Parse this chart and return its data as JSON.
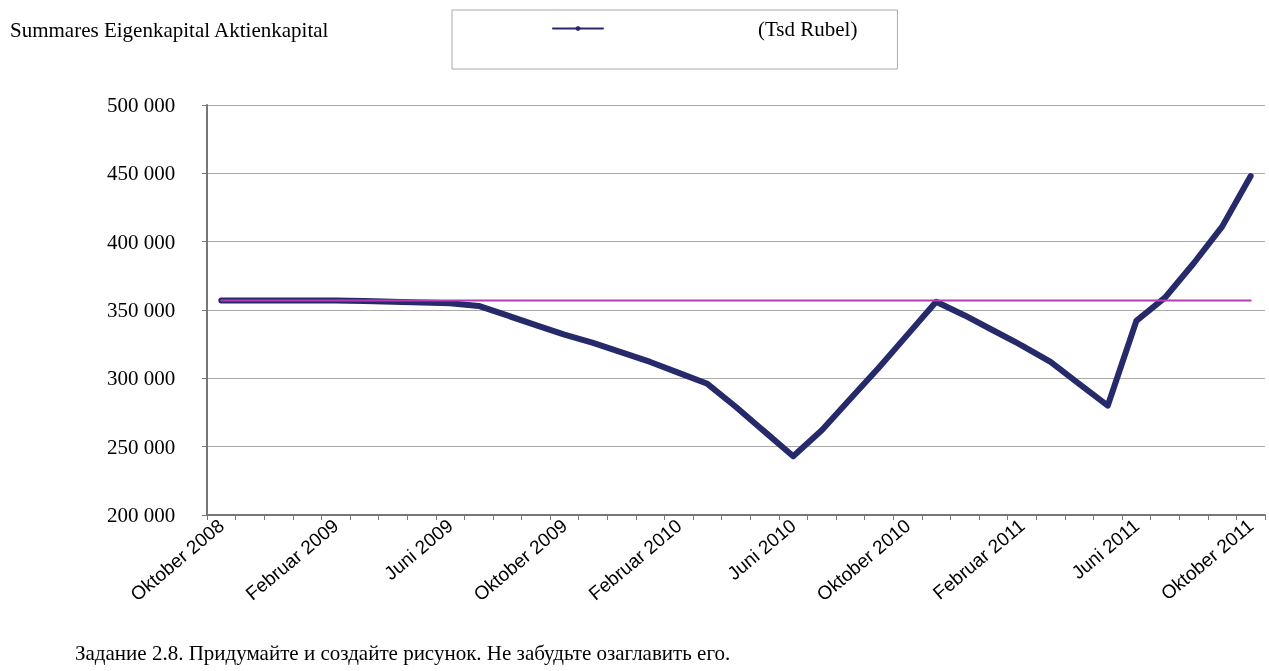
{
  "chart_data": {
    "type": "line",
    "title": "Summares Eigenkapital Aktienkapital",
    "categories": [
      "Oktober 2008",
      null,
      null,
      null,
      "Februar 2009",
      null,
      null,
      null,
      "Juni 2009",
      null,
      null,
      null,
      "Oktober 2009",
      null,
      null,
      null,
      "Februar 2010",
      null,
      null,
      null,
      "Juni 2010",
      null,
      null,
      null,
      "Oktober 2010",
      null,
      null,
      null,
      "Februar 2011",
      null,
      null,
      null,
      "Juni 2011",
      null,
      null,
      null,
      "Oktober 2011"
    ],
    "series": [
      {
        "name": "(Tsd Rubel)",
        "color": "#262a6b",
        "values": [
          357000,
          357000,
          357000,
          357000,
          357000,
          356500,
          356000,
          355500,
          355000,
          353000,
          346000,
          339000,
          332000,
          326000,
          319000,
          312000,
          304000,
          296000,
          279000,
          261000,
          243000,
          262000,
          285000,
          308000,
          332000,
          356000,
          346000,
          335000,
          324000,
          312000,
          296000,
          280000,
          342000,
          359000,
          384000,
          411000,
          448000
        ]
      },
      {
        "color": "#b43cb4",
        "values": [
          357000,
          357000,
          357000,
          357000,
          357000,
          357000,
          357000,
          357000,
          357000,
          357000,
          357000,
          357000,
          357000,
          357000,
          357000,
          357000,
          357000,
          357000,
          357000,
          357000,
          357000,
          357000,
          357000,
          357000,
          357000,
          357000,
          357000,
          357000,
          357000,
          357000,
          357000,
          357000,
          357000,
          357000,
          357000,
          357000,
          357000
        ]
      }
    ],
    "ylim": [
      200000,
      500000
    ],
    "yticks": [
      {
        "value": 200000,
        "label": "200 000"
      },
      {
        "value": 250000,
        "label": "250 000"
      },
      {
        "value": 300000,
        "label": "300 000"
      },
      {
        "value": 350000,
        "label": "350 000"
      },
      {
        "value": 400000,
        "label": "400 000"
      },
      {
        "value": 450000,
        "label": "450 000"
      },
      {
        "value": 500000,
        "label": "500 000"
      }
    ],
    "grid": "y",
    "legend": "top",
    "marker": "none",
    "line_style": "solid",
    "annotations": [
      "Задание 2.8. Придумайте и создайте рисунок. Не забудьте озаглавить его."
    ]
  }
}
